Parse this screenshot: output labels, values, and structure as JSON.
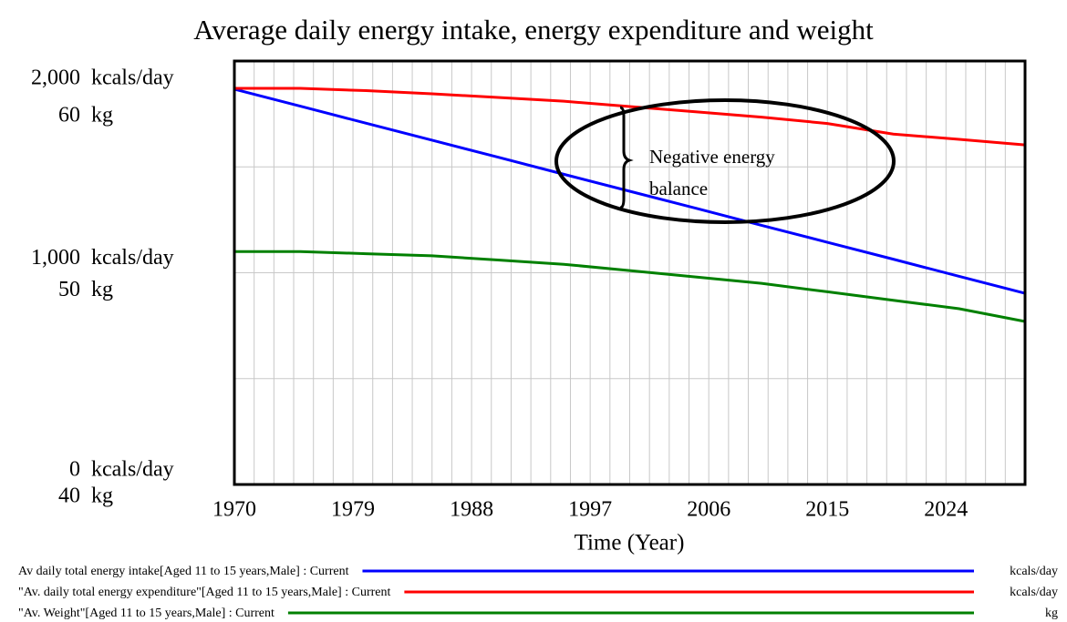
{
  "chart_data": {
    "type": "line",
    "title": "Average daily energy intake, energy expenditure and weight",
    "xlabel": "Time (Year)",
    "ylabel": "kcals/day",
    "y2label": "kg",
    "annotation": [
      "Negative energy",
      "balance"
    ],
    "x": [
      1970,
      1975,
      1980,
      1985,
      1990,
      1995,
      2000,
      2005,
      2010,
      2015,
      2020,
      2025,
      2030
    ],
    "xlim": [
      1970,
      2030
    ],
    "xticks": [
      1970,
      1979,
      1988,
      1997,
      2006,
      2015,
      2024
    ],
    "ylim": [
      0,
      2000
    ],
    "yticks": [
      0,
      {
        "value": 1000,
        "label": "1,000"
      },
      {
        "value": 2000,
        "label": "2,000"
      }
    ],
    "y2lim": [
      40,
      60
    ],
    "y2ticks": [
      40,
      50,
      60
    ],
    "grid": true,
    "series": [
      {
        "name": "Av daily total energy intake[Aged 11 to 15 years,Male] : Current",
        "unit": "kcals/day",
        "color": "#0000ff",
        "values": [
          1867,
          1787,
          1706,
          1626,
          1546,
          1465,
          1385,
          1305,
          1224,
          1144,
          1064,
          983,
          903
        ]
      },
      {
        "name": "\"Av. daily total energy expenditure\"[Aged 11 to 15 years,Male] : Current",
        "unit": "kcals/day",
        "color": "#ff0000",
        "values": [
          1871,
          1871,
          1860,
          1845,
          1828,
          1810,
          1785,
          1760,
          1735,
          1705,
          1655,
          1630,
          1604
        ]
      },
      {
        "name": "\"Av. Weight\"[Aged 11 to 15 years,Male] : Current",
        "unit": "kg",
        "color": "#008000",
        "axis": "y2",
        "values": [
          51.0,
          51.0,
          50.9,
          50.8,
          50.6,
          50.4,
          50.1,
          49.8,
          49.5,
          49.1,
          48.7,
          48.3,
          47.7
        ]
      }
    ]
  }
}
